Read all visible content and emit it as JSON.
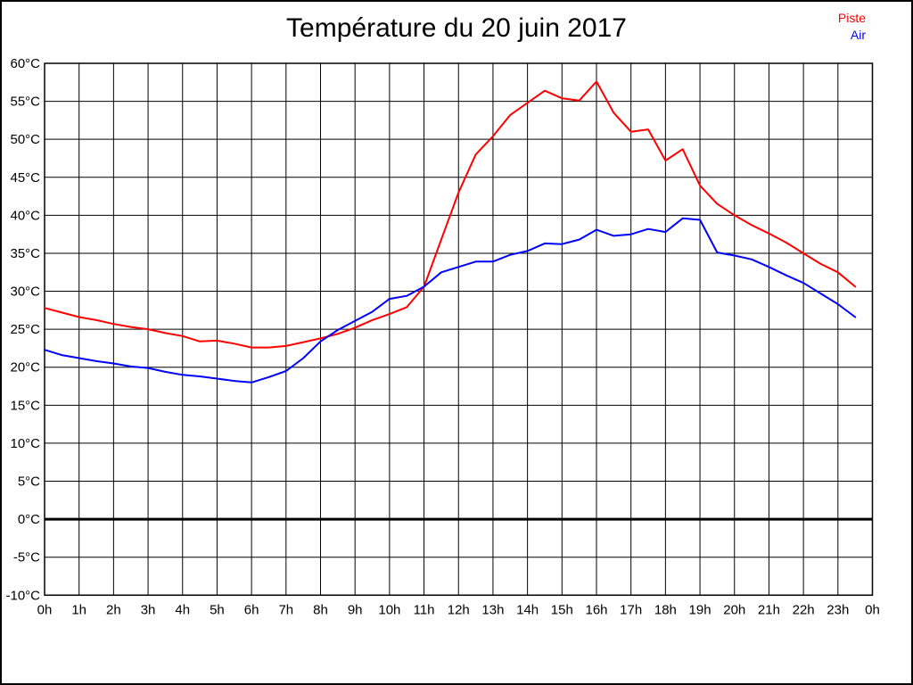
{
  "title": "Température du 20 juin 2017",
  "legend": [
    {
      "label": "Piste",
      "color": "#ff0000"
    },
    {
      "label": "Air",
      "color": "#0000ff"
    }
  ],
  "chart_data": {
    "type": "line",
    "title": "Température du 20 juin 2017",
    "xlabel": "",
    "ylabel": "",
    "x_unit": "hour of day",
    "y_unit": "°C",
    "xlim": [
      0,
      24
    ],
    "ylim": [
      -10,
      60
    ],
    "y_tick_step": 5,
    "grid": true,
    "zero_line_bold": true,
    "legend_position": "top-right",
    "x_tick_labels": [
      "0h",
      "1h",
      "2h",
      "3h",
      "4h",
      "5h",
      "6h",
      "7h",
      "8h",
      "9h",
      "10h",
      "11h",
      "12h",
      "13h",
      "14h",
      "15h",
      "16h",
      "17h",
      "18h",
      "19h",
      "20h",
      "21h",
      "22h",
      "23h",
      "0h"
    ],
    "y_tick_labels": [
      "60°C",
      "55°C",
      "50°C",
      "45°C",
      "40°C",
      "35°C",
      "30°C",
      "25°C",
      "20°C",
      "15°C",
      "10°C",
      "5°C",
      "0°C",
      "-5°C",
      "-10°C"
    ],
    "x_hours_start": 0,
    "x_hours_step": 0.5,
    "series": [
      {
        "name": "Piste",
        "color": "#ff0000",
        "values": [
          27.8,
          27.2,
          26.6,
          26.2,
          25.7,
          25.3,
          25.0,
          24.5,
          24.1,
          23.4,
          23.5,
          23.1,
          22.6,
          22.6,
          22.8,
          23.3,
          23.8,
          24.4,
          25.2,
          26.2,
          27.0,
          27.9,
          30.6,
          36.8,
          43.0,
          48.0,
          50.4,
          53.2,
          54.8,
          56.4,
          55.4,
          55.1,
          57.6,
          53.5,
          51.0,
          51.3,
          47.2,
          48.7,
          43.9,
          41.5,
          40.0,
          38.7,
          37.6,
          36.4,
          35.0,
          33.6,
          32.5,
          30.6
        ]
      },
      {
        "name": "Air",
        "color": "#0000ff",
        "values": [
          22.3,
          21.6,
          21.2,
          20.8,
          20.5,
          20.1,
          19.9,
          19.4,
          19.0,
          18.8,
          18.5,
          18.2,
          18.0,
          18.7,
          19.5,
          21.2,
          23.4,
          24.9,
          26.1,
          27.3,
          29.0,
          29.4,
          30.6,
          32.5,
          33.2,
          33.9,
          33.9,
          34.8,
          35.3,
          36.3,
          36.2,
          36.8,
          38.1,
          37.3,
          37.5,
          38.2,
          37.8,
          39.6,
          39.4,
          35.1,
          34.7,
          34.2,
          33.2,
          32.1,
          31.1,
          29.7,
          28.3,
          26.6
        ]
      }
    ]
  }
}
